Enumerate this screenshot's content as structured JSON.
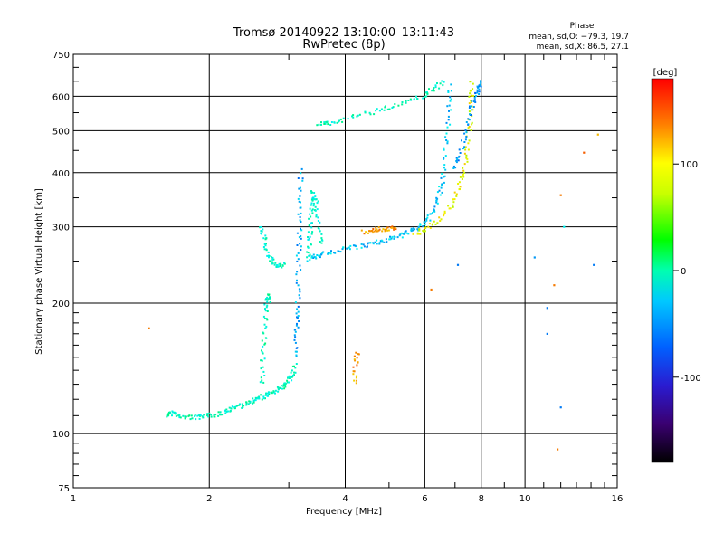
{
  "chart_data": {
    "type": "scatter",
    "title": "Tromsø 20140922 13:10:00–13:11:43",
    "subtitle": "RwPretec (8p)",
    "phase_info": {
      "heading": "Phase",
      "line1": "mean, sd,O:  −79.3, 19.7",
      "line2": "mean, sd,X:   86.5, 27.1"
    },
    "xlabel": "Frequency [MHz]",
    "ylabel": "Stationary phase Virtual Height [km]",
    "x_scale": "log",
    "y_scale": "log",
    "xlim": [
      1,
      16
    ],
    "ylim": [
      75,
      750
    ],
    "x_ticks": [
      1,
      2,
      4,
      6,
      8,
      10,
      16
    ],
    "y_ticks": [
      75,
      100,
      200,
      300,
      400,
      500,
      600,
      750
    ],
    "grid": true,
    "colorbar": {
      "label": "[deg]",
      "min": -180,
      "max": 180,
      "ticks": [
        100,
        0,
        -100
      ]
    },
    "traces": [
      {
        "x": [
          1.62,
          1.65,
          1.7,
          1.8,
          1.9,
          2.0,
          2.1,
          2.2,
          2.3,
          2.4,
          2.5,
          2.6,
          2.7,
          2.8,
          2.9,
          3.0,
          3.05,
          3.1
        ],
        "y": [
          110,
          112,
          110,
          109,
          109,
          110,
          111,
          113,
          115,
          117,
          119,
          121,
          123,
          125,
          128,
          132,
          136,
          145
        ],
        "phase": -40
      },
      {
        "x": [
          3.1,
          3.12,
          3.13,
          3.15,
          3.16,
          3.17,
          3.18,
          3.19
        ],
        "y": [
          150,
          170,
          190,
          220,
          260,
          300,
          350,
          410
        ],
        "phase": -85
      },
      {
        "x": [
          2.6,
          2.65,
          2.7,
          2.78,
          2.85,
          2.92
        ],
        "y": [
          300,
          280,
          260,
          248,
          243,
          245
        ],
        "phase": -45
      },
      {
        "x": [
          2.62,
          2.63,
          2.65,
          2.67,
          2.7,
          2.72
        ],
        "y": [
          130,
          150,
          170,
          190,
          210,
          200
        ],
        "phase": -40
      },
      {
        "x": [
          3.35,
          3.5,
          3.7,
          4.0,
          4.3,
          4.6,
          4.9,
          5.2,
          5.5,
          5.8,
          6.1,
          6.3,
          6.5,
          6.6,
          6.7,
          6.8,
          6.85
        ],
        "y": [
          255,
          258,
          262,
          266,
          270,
          274,
          279,
          284,
          291,
          299,
          310,
          330,
          360,
          400,
          470,
          560,
          640
        ],
        "phase": -75
      },
      {
        "x": [
          3.3,
          3.33,
          3.35,
          3.37,
          3.4,
          3.45,
          3.5,
          3.55
        ],
        "y": [
          250,
          275,
          300,
          330,
          360,
          340,
          300,
          270
        ],
        "phase": -50
      },
      {
        "x": [
          3.5,
          3.7,
          4.0,
          4.5,
          5.0,
          5.5,
          6.0,
          6.3,
          6.6
        ],
        "y": [
          515,
          520,
          530,
          548,
          565,
          585,
          605,
          625,
          650
        ],
        "phase": -40
      },
      {
        "x": [
          5.7,
          6.0,
          6.4,
          6.8,
          7.1,
          7.3,
          7.45,
          7.55,
          7.6,
          7.62
        ],
        "y": [
          288,
          296,
          310,
          330,
          360,
          400,
          450,
          520,
          590,
          650
        ],
        "phase": 95
      },
      {
        "x": [
          4.4,
          4.6,
          4.8,
          5.0,
          5.2
        ],
        "y": [
          292,
          294,
          296,
          297,
          298
        ],
        "phase": 130
      },
      {
        "x": [
          4.2,
          4.22,
          4.25
        ],
        "y": [
          130,
          145,
          155
        ],
        "phase": 130
      },
      {
        "x": [
          7.0,
          7.2,
          7.4,
          7.6,
          7.8,
          7.9,
          8.0
        ],
        "y": [
          410,
          440,
          500,
          560,
          600,
          630,
          650
        ],
        "phase": -90
      }
    ],
    "isolated_points": [
      {
        "x": 1.47,
        "y": 175,
        "phase": 140
      },
      {
        "x": 6.2,
        "y": 215,
        "phase": 140
      },
      {
        "x": 7.1,
        "y": 245,
        "phase": -100
      },
      {
        "x": 10.5,
        "y": 255,
        "phase": -90
      },
      {
        "x": 11.2,
        "y": 170,
        "phase": -100
      },
      {
        "x": 11.2,
        "y": 195,
        "phase": -100
      },
      {
        "x": 12.0,
        "y": 115,
        "phase": -100
      },
      {
        "x": 11.8,
        "y": 92,
        "phase": 140
      },
      {
        "x": 11.6,
        "y": 220,
        "phase": 140
      },
      {
        "x": 12.2,
        "y": 300,
        "phase": -60
      },
      {
        "x": 12.0,
        "y": 355,
        "phase": 140
      },
      {
        "x": 13.5,
        "y": 445,
        "phase": 150
      },
      {
        "x": 14.2,
        "y": 245,
        "phase": -100
      },
      {
        "x": 14.5,
        "y": 490,
        "phase": 120
      }
    ]
  }
}
